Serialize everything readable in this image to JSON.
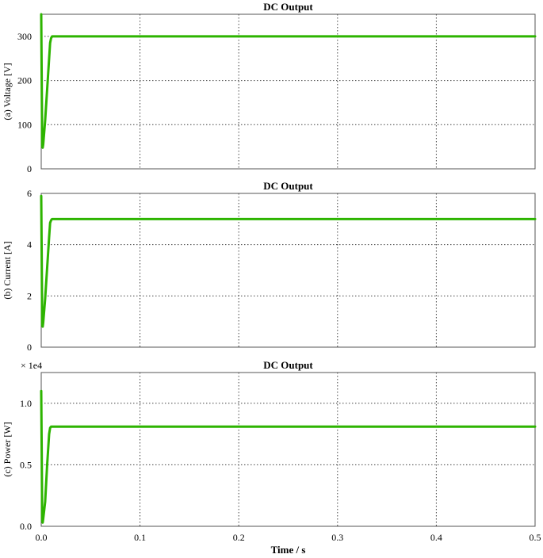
{
  "chart_data": [
    {
      "type": "line",
      "title": "DC Output",
      "ylabel": "(a) Voltage [V]",
      "xlabel": "",
      "scale_label": "",
      "xlim": [
        0,
        0.5
      ],
      "ylim": [
        0,
        350
      ],
      "yticks": [
        0,
        100,
        200,
        300
      ],
      "ytick_labels": [
        "0",
        "100",
        "200",
        "300"
      ],
      "xtick_labels": [],
      "grid": true,
      "color": "#2db400",
      "series": [
        {
          "x": [
            0,
            0.0005,
            0.001,
            0.0015,
            0.002,
            0.004,
            0.006,
            0.008,
            0.009,
            0.01,
            0.011,
            0.5
          ],
          "values": [
            350,
            200,
            50,
            48,
            55,
            110,
            180,
            250,
            285,
            296,
            300,
            300
          ]
        }
      ]
    },
    {
      "type": "line",
      "title": "DC Output",
      "ylabel": "(b) Current [A]",
      "xlabel": "",
      "scale_label": "",
      "xlim": [
        0,
        0.5
      ],
      "ylim": [
        0,
        6
      ],
      "yticks": [
        0,
        2,
        4,
        6
      ],
      "ytick_labels": [
        "0",
        "2",
        "4",
        "6"
      ],
      "xtick_labels": [],
      "grid": true,
      "color": "#2db400",
      "series": [
        {
          "x": [
            0,
            0.0005,
            0.001,
            0.0015,
            0.002,
            0.004,
            0.006,
            0.008,
            0.009,
            0.01,
            0.011,
            0.5
          ],
          "values": [
            5.9,
            3.5,
            0.85,
            0.8,
            0.95,
            1.9,
            3.1,
            4.3,
            4.85,
            4.95,
            5.0,
            5.0
          ]
        }
      ]
    },
    {
      "type": "line",
      "title": "DC Output",
      "ylabel": "(c) Power [W]",
      "xlabel": "Time / s",
      "scale_label": "× 1e4",
      "xlim": [
        0,
        0.5
      ],
      "ylim": [
        0,
        1.25
      ],
      "yticks": [
        0,
        0.5,
        1.0
      ],
      "ytick_labels": [
        "0.0",
        "0.5",
        "1.0"
      ],
      "xtick_labels": [
        "0.0",
        "0.1",
        "0.2",
        "0.3",
        "0.4",
        "0.5"
      ],
      "grid": true,
      "color": "#2db400",
      "series": [
        {
          "x": [
            0,
            0.0005,
            0.001,
            0.0015,
            0.002,
            0.004,
            0.006,
            0.008,
            0.009,
            0.01,
            0.011,
            0.5
          ],
          "values": [
            1.1,
            0.6,
            0.05,
            0.03,
            0.06,
            0.2,
            0.5,
            0.75,
            0.8,
            0.81,
            0.81,
            0.81
          ]
        }
      ]
    }
  ]
}
